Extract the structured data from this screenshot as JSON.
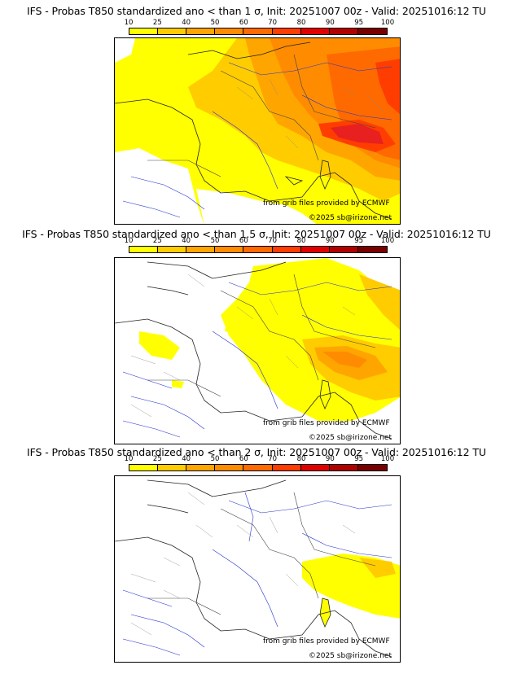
{
  "panels": [
    {
      "title": "IFS - Probas T850  standardized ano < than 1 σ, Init: 20251007 00z - Valid: 20251016:12 TU",
      "provider_text": "from grib files provided by ECMWF",
      "copyright": "©2025 sb@irizone.net",
      "threshold_sigma": 1
    },
    {
      "title": "IFS - Probas T850  standardized ano < than 1.5 σ, Init: 20251007 00z - Valid: 20251016:12 TU",
      "provider_text": "from grib files provided by ECMWF",
      "copyright": "©2025 sb@irizone.net",
      "threshold_sigma": 1.5
    },
    {
      "title": "IFS - Probas T850  standardized ano < than 2 σ, Init: 20251007 00z - Valid: 20251016:12 TU",
      "provider_text": "from grib files provided by ECMWF",
      "copyright": "©2025 sb@irizone.net",
      "threshold_sigma": 2
    }
  ],
  "colorbar": {
    "labels": [
      "10",
      "25",
      "40",
      "50",
      "60",
      "70",
      "80",
      "90",
      "95",
      "100"
    ],
    "colors": [
      "#ffff00",
      "#ffcc00",
      "#ffa500",
      "#ff8c00",
      "#ff6a00",
      "#ff3d00",
      "#e00000",
      "#b00000",
      "#7a0000"
    ]
  }
}
